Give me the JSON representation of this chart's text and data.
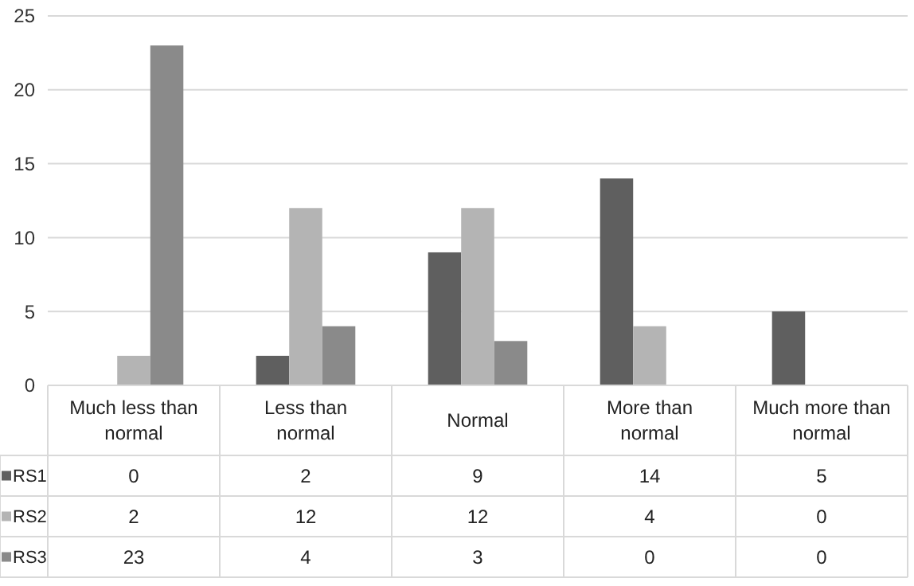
{
  "chart_data": {
    "type": "bar",
    "categories": [
      "Much less than normal",
      "Less than normal",
      "Normal",
      "More than normal",
      "Much more than normal"
    ],
    "series": [
      {
        "name": "RS1",
        "color": "#5f5f5f",
        "values": [
          0,
          2,
          9,
          14,
          5
        ]
      },
      {
        "name": "RS2",
        "color": "#b4b4b4",
        "values": [
          2,
          12,
          12,
          4,
          0
        ]
      },
      {
        "name": "RS3",
        "color": "#8a8a8a",
        "values": [
          23,
          4,
          3,
          0,
          0
        ]
      }
    ],
    "ylim": [
      0,
      25
    ],
    "yticks": [
      0,
      5,
      10,
      15,
      20,
      25
    ],
    "grid": "y",
    "data_labels": true,
    "legend": "bottom left"
  }
}
